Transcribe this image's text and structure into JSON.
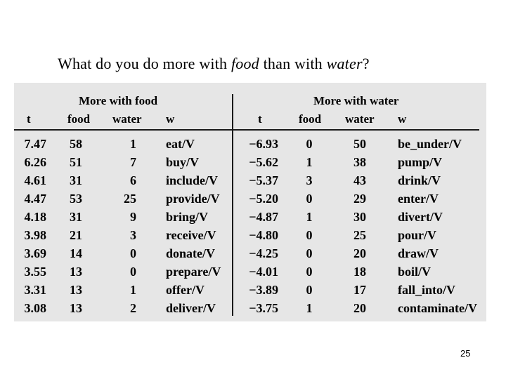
{
  "title": {
    "prefix": "What do you do more with",
    "word1": "food",
    "middle": "than with",
    "word2": "water",
    "suffix": "?"
  },
  "table": {
    "left_group": "More with food",
    "right_group": "More with water",
    "headers": [
      "t",
      "food",
      "water",
      "w"
    ],
    "left_rows": [
      [
        "7.47",
        "58",
        "1",
        "eat/V"
      ],
      [
        "6.26",
        "51",
        "7",
        "buy/V"
      ],
      [
        "4.61",
        "31",
        "6",
        "include/V"
      ],
      [
        "4.47",
        "53",
        "25",
        "provide/V"
      ],
      [
        "4.18",
        "31",
        "9",
        "bring/V"
      ],
      [
        "3.98",
        "21",
        "3",
        "receive/V"
      ],
      [
        "3.69",
        "14",
        "0",
        "donate/V"
      ],
      [
        "3.55",
        "13",
        "0",
        "prepare/V"
      ],
      [
        "3.31",
        "13",
        "1",
        "offer/V"
      ],
      [
        "3.08",
        "13",
        "2",
        "deliver/V"
      ]
    ],
    "right_rows": [
      [
        "−6.93",
        "0",
        "50",
        "be_under/V"
      ],
      [
        "−5.62",
        "1",
        "38",
        "pump/V"
      ],
      [
        "−5.37",
        "3",
        "43",
        "drink/V"
      ],
      [
        "−5.20",
        "0",
        "29",
        "enter/V"
      ],
      [
        "−4.87",
        "1",
        "30",
        "divert/V"
      ],
      [
        "−4.80",
        "0",
        "25",
        "pour/V"
      ],
      [
        "−4.25",
        "0",
        "20",
        "draw/V"
      ],
      [
        "−4.01",
        "0",
        "18",
        "boil/V"
      ],
      [
        "−3.89",
        "0",
        "17",
        "fall_into/V"
      ],
      [
        "−3.75",
        "1",
        "20",
        "contaminate/V"
      ]
    ]
  },
  "page_number": "25"
}
